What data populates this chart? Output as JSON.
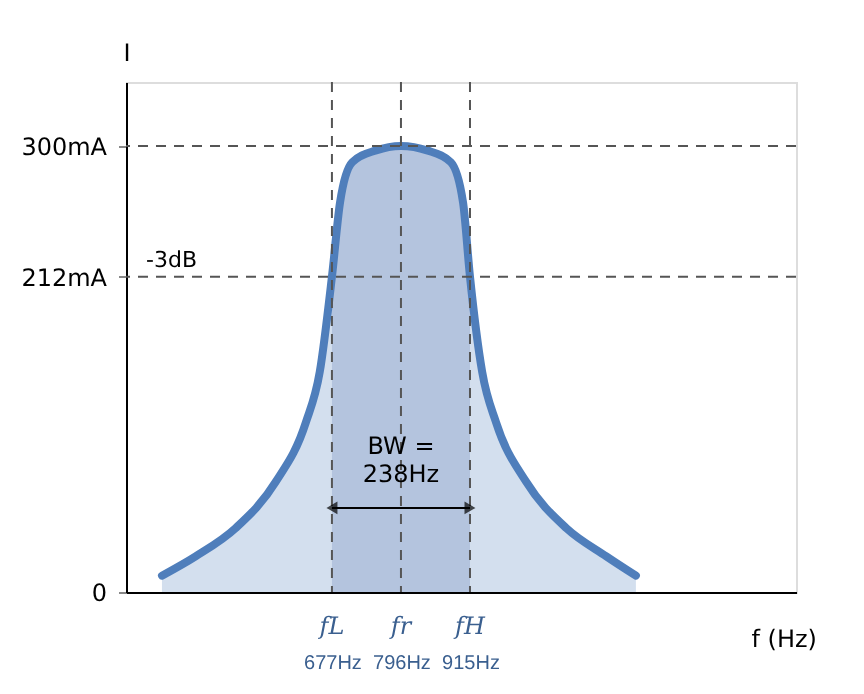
{
  "chart_data": {
    "type": "area",
    "xlabel": "f (Hz)",
    "ylabel": "I",
    "x": [
      384,
      442,
      511,
      580,
      632,
      656,
      677,
      691,
      712,
      753,
      796,
      841,
      882,
      903,
      915,
      936,
      960,
      1012,
      1081,
      1150,
      1201
    ],
    "series": [
      {
        "color": "#4f7ebb",
        "values": [
          11,
          24,
          43,
          74,
          114,
          148,
          212,
          262,
          289,
          297,
          300,
          297,
          289,
          262,
          212,
          148,
          114,
          74,
          43,
          24,
          11
        ]
      }
    ],
    "xlim": [
      322,
      1477
    ],
    "ylim": [
      0,
      343
    ],
    "xticks": [
      {
        "value": 677,
        "label": "677Hz"
      },
      {
        "value": 796,
        "label": "796Hz"
      },
      {
        "value": 915,
        "label": "915Hz"
      }
    ],
    "yticks": [
      0,
      {
        "value": 212,
        "label": "212mA"
      },
      {
        "value": 300,
        "label": "300mA"
      }
    ],
    "bands": [
      {
        "axis": "x",
        "from": 677,
        "to": 915,
        "color": "#d6dbea"
      }
    ],
    "ref_lines": [
      {
        "axis": "x",
        "value": 677,
        "color": "#555555",
        "line_style": "dashed"
      },
      {
        "axis": "x",
        "value": 796,
        "color": "#555555",
        "line_style": "dashed"
      },
      {
        "axis": "x",
        "value": 915,
        "color": "#555555",
        "line_style": "dashed"
      },
      {
        "axis": "y",
        "value": 300,
        "color": "#555555",
        "line_style": "dashed"
      },
      {
        "axis": "y",
        "value": 212,
        "color": "#555555",
        "line_style": "dashed",
        "label": "-3dB"
      }
    ],
    "annotations": [
      {
        "text": "BW =\n238Hz",
        "x": 796,
        "y": 105
      },
      {
        "text": "fL",
        "x": 677,
        "y": 0
      },
      {
        "text": "fr",
        "x": 796,
        "y": 0
      },
      {
        "text": "fH",
        "x": 915,
        "y": 0
      }
    ],
    "grid": false,
    "legend": false
  }
}
